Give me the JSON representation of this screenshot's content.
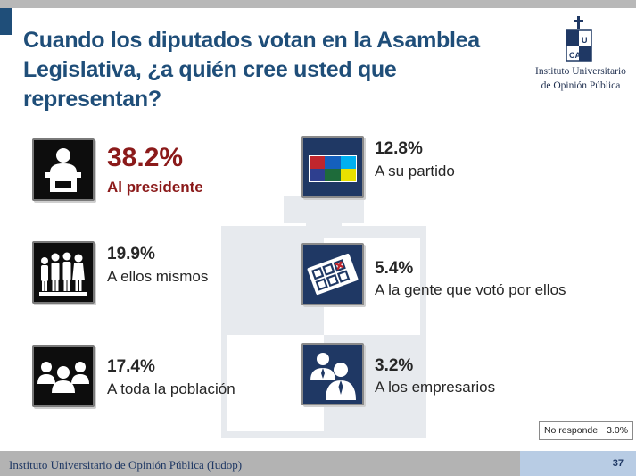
{
  "title": "Cuando los diputados votan en la Asamblea Legislativa, ¿a quién cree usted que representan?",
  "logo": {
    "line1": "Instituto Universitario",
    "line2": "de Opinión Pública"
  },
  "colors": {
    "title": "#1f4e79",
    "highlight": "#8b1a1a",
    "text": "#262626",
    "icon_dark": "#0d0d0d",
    "icon_navy": "#1f3864"
  },
  "chart_data": {
    "type": "table",
    "title": "Cuando los diputados votan en la Asamblea Legislativa, ¿a quién cree usted que representan?",
    "unit": "%",
    "items": [
      {
        "label": "Al presidente",
        "value": 38.2,
        "display": "38.2%",
        "icon": "presidential-podium-icon"
      },
      {
        "label": "A ellos mismos",
        "value": 19.9,
        "display": "19.9%",
        "icon": "group-of-people-icon"
      },
      {
        "label": "A toda la población",
        "value": 17.4,
        "display": "17.4%",
        "icon": "population-crowd-icon"
      },
      {
        "label": "A su partido",
        "value": 12.8,
        "display": "12.8%",
        "icon": "party-colors-icon"
      },
      {
        "label": "A la gente que votó por ellos",
        "value": 5.4,
        "display": "5.4%",
        "icon": "ballot-icon"
      },
      {
        "label": "A los empresarios",
        "value": 3.2,
        "display": "3.2%",
        "icon": "businessmen-icon"
      }
    ],
    "no_response": {
      "label": "No responde",
      "value": 3.0,
      "display": "3.0%"
    }
  },
  "footer": {
    "institution": "Instituto Universitario de Opinión Pública (Iudop)",
    "page": "37"
  }
}
